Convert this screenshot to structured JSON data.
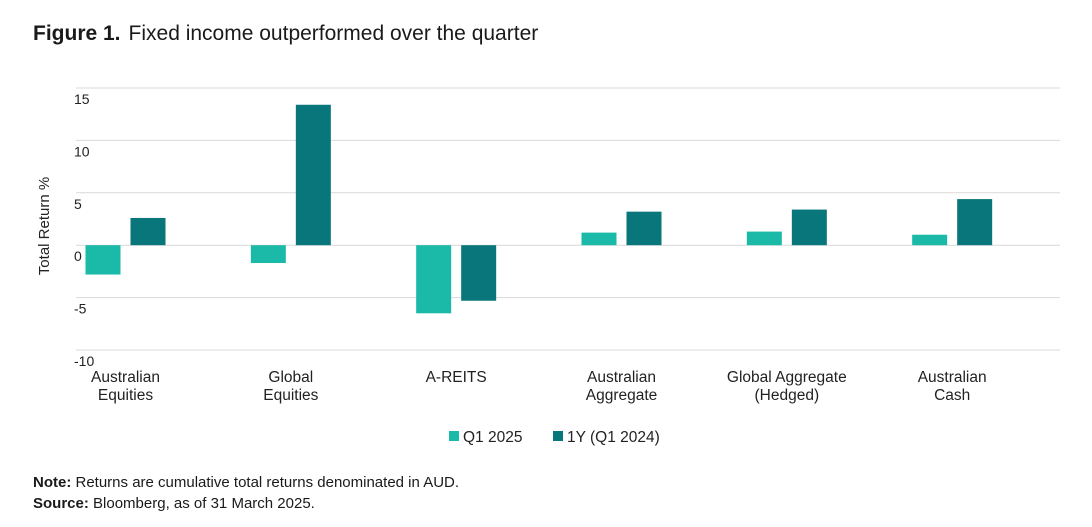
{
  "figure": {
    "label": "Figure 1.",
    "title": "Fixed income outperformed over the quarter"
  },
  "colors": {
    "q1": "#1bbaa8",
    "oneyear": "#08767a",
    "grid": "#d9d9d9",
    "text": "#222222"
  },
  "chart_data": {
    "type": "bar",
    "title": "Fixed income outperformed over the quarter",
    "ylabel": "Total Return %",
    "xlabel": "",
    "ylim": [
      -10,
      15
    ],
    "yticks": [
      15,
      10,
      5,
      0,
      -5,
      -10
    ],
    "grid": true,
    "legend_position": "bottom-center",
    "categories": [
      [
        "Australian",
        "Equities"
      ],
      [
        "Global",
        "Equities"
      ],
      [
        "A-REITS"
      ],
      [
        "Australian",
        "Aggregate"
      ],
      [
        "Global Aggregate",
        "(Hedged)"
      ],
      [
        "Australian",
        "Cash"
      ]
    ],
    "series": [
      {
        "name": "Q1 2025",
        "values": [
          -2.8,
          -1.7,
          -6.5,
          1.2,
          1.3,
          1.0
        ]
      },
      {
        "name": "1Y (Q1 2024)",
        "values": [
          2.6,
          13.4,
          -5.3,
          3.2,
          3.4,
          4.4
        ]
      }
    ]
  },
  "notes": {
    "note_label": "Note:",
    "note_text": "Returns are cumulative total returns denominated in AUD.",
    "source_label": "Source:",
    "source_text": "Bloomberg, as of 31 March 2025."
  }
}
